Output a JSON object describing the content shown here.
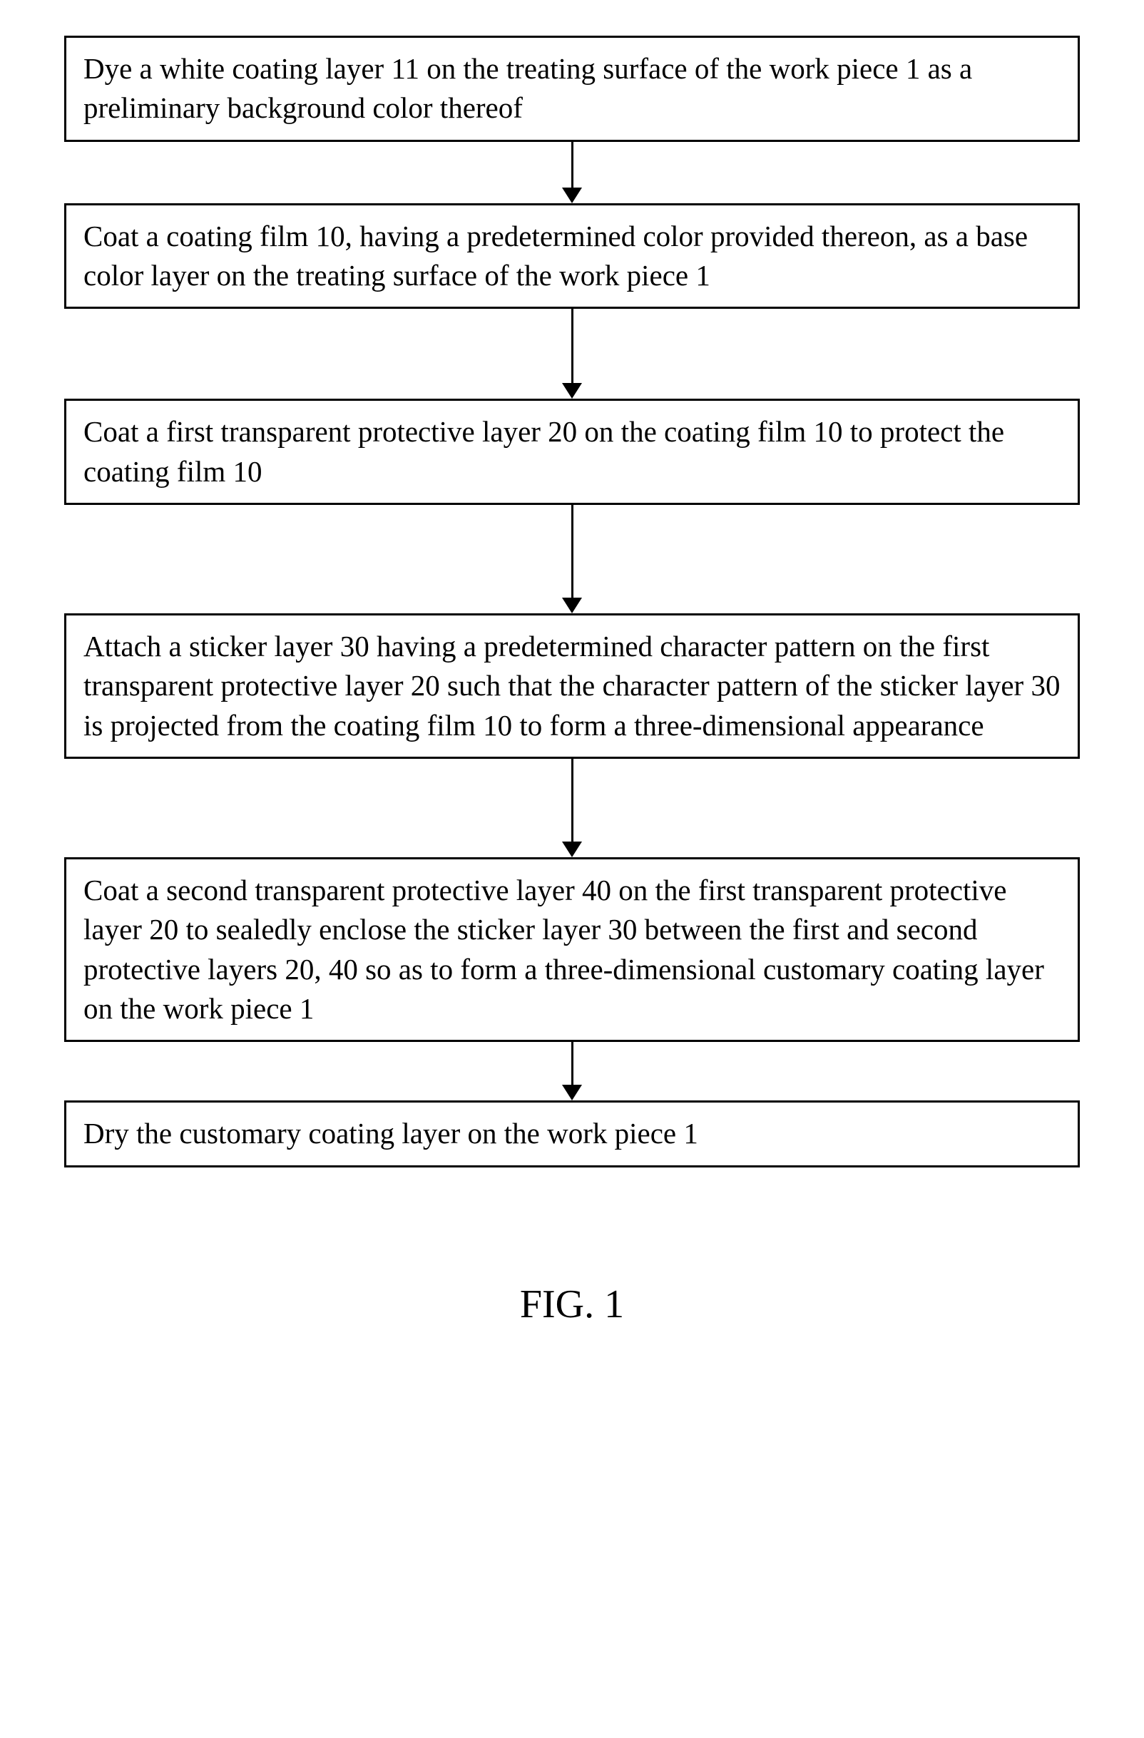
{
  "flowchart": {
    "background_color": "#ffffff",
    "box_border_color": "#000000",
    "box_border_width": 3,
    "text_color": "#000000",
    "font_family": "Times New Roman",
    "box_font_size": 41,
    "arrow_color": "#000000",
    "arrow_line_width": 3,
    "arrow_head_width": 28,
    "arrow_head_height": 22,
    "steps": [
      {
        "text": "Dye a white coating layer 11 on the treating surface of the work piece 1 as a preliminary background color thereof",
        "arrow_length": 64
      },
      {
        "text": "Coat a coating film 10, having a predetermined color provided thereon, as a base color layer on the treating surface of the work piece 1",
        "arrow_length": 104
      },
      {
        "text": "Coat a first transparent protective layer 20 on the coating film 10 to protect the coating film 10",
        "arrow_length": 130
      },
      {
        "text": "Attach a sticker layer 30 having a predetermined character pattern on the first transparent protective layer 20 such that the character pattern of the sticker layer 30 is projected from the coating film 10 to form a three-dimensional appearance",
        "arrow_length": 116
      },
      {
        "text": "Coat a second transparent protective layer 40 on the first transparent protective layer 20 to sealedly enclose the sticker layer 30 between the first and second protective layers 20, 40 so as to form a three-dimensional customary coating layer on the work piece 1",
        "arrow_length": 60
      },
      {
        "text": "Dry the customary coating layer on the work piece 1",
        "arrow_length": 0
      }
    ]
  },
  "figure_label": {
    "text": "FIG. 1",
    "font_size": 56,
    "color": "#000000"
  }
}
